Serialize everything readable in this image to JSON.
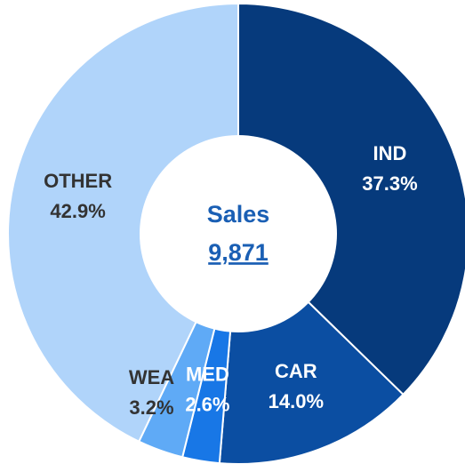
{
  "chart_data": {
    "type": "donut",
    "categories": [
      "IND",
      "CAR",
      "MED",
      "WEA",
      "OTHER"
    ],
    "values": [
      37.3,
      14.0,
      2.6,
      3.2,
      42.9
    ],
    "value_labels": [
      "37.3%",
      "14.0%",
      "2.6%",
      "3.2%",
      "42.9%"
    ],
    "colors": [
      "#063a7c",
      "#0b4ea2",
      "#1877e6",
      "#5faaf6",
      "#b0d4fa"
    ],
    "center": {
      "title": "Sales",
      "value": 9871,
      "label": "9,871"
    }
  }
}
